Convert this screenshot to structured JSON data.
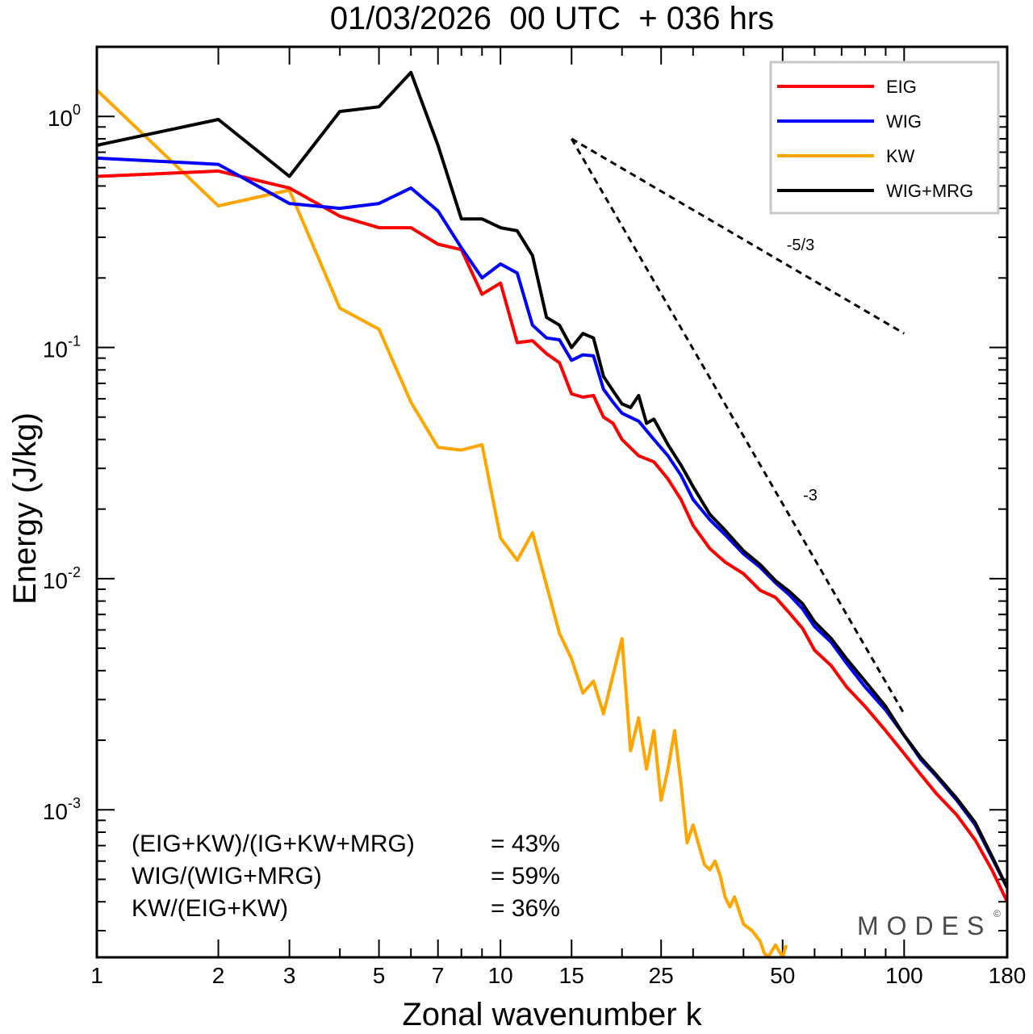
{
  "chart_data": {
    "type": "line",
    "title": "01/03/2026  00 UTC  + 036 hrs",
    "xlabel": "Zonal wavenumber k",
    "ylabel": "Energy (J/kg)",
    "xscale": "log",
    "yscale": "log",
    "xlim": [
      1,
      180
    ],
    "ylim": [
      0.00023,
      2.0
    ],
    "x_ticks": [
      1,
      2,
      3,
      5,
      7,
      10,
      15,
      25,
      50,
      100,
      180
    ],
    "x_tick_labels": [
      "1",
      "2",
      "3",
      "5",
      "7",
      "10",
      "15",
      "25",
      "50",
      "100",
      "180"
    ],
    "y_ticks": [
      {
        "value": 1,
        "base": "10",
        "exp": "0"
      },
      {
        "value": 0.1,
        "base": "10",
        "exp": "-1"
      },
      {
        "value": 0.01,
        "base": "10",
        "exp": "-2"
      },
      {
        "value": 0.001,
        "base": "10",
        "exp": "-3"
      }
    ],
    "legend_position": "top-right",
    "series": [
      {
        "name": "EIG",
        "color": "#ff0000",
        "points": [
          [
            1,
            0.55
          ],
          [
            2,
            0.58
          ],
          [
            3,
            0.49
          ],
          [
            4,
            0.37
          ],
          [
            5,
            0.33
          ],
          [
            6,
            0.33
          ],
          [
            7,
            0.28
          ],
          [
            8,
            0.265
          ],
          [
            9,
            0.17
          ],
          [
            10,
            0.19
          ],
          [
            11,
            0.105
          ],
          [
            12,
            0.107
          ],
          [
            13,
            0.094
          ],
          [
            14,
            0.086
          ],
          [
            15,
            0.063
          ],
          [
            16,
            0.061
          ],
          [
            17,
            0.062
          ],
          [
            18,
            0.05
          ],
          [
            19,
            0.047
          ],
          [
            20,
            0.04
          ],
          [
            22,
            0.034
          ],
          [
            24,
            0.032
          ],
          [
            26,
            0.027
          ],
          [
            28,
            0.022
          ],
          [
            30,
            0.017
          ],
          [
            33,
            0.0135
          ],
          [
            36,
            0.0118
          ],
          [
            40,
            0.0105
          ],
          [
            44,
            0.0089
          ],
          [
            48,
            0.0083
          ],
          [
            52,
            0.0071
          ],
          [
            56,
            0.0061
          ],
          [
            60,
            0.0049
          ],
          [
            66,
            0.0042
          ],
          [
            72,
            0.0034
          ],
          [
            80,
            0.0028
          ],
          [
            90,
            0.0022
          ],
          [
            100,
            0.00175
          ],
          [
            110,
            0.00142
          ],
          [
            120,
            0.00118
          ],
          [
            135,
            0.00095
          ],
          [
            150,
            0.00074
          ],
          [
            165,
            0.00055
          ],
          [
            180,
            0.0004
          ]
        ]
      },
      {
        "name": "WIG",
        "color": "#0000ff",
        "points": [
          [
            1,
            0.66
          ],
          [
            2,
            0.62
          ],
          [
            3,
            0.42
          ],
          [
            4,
            0.4
          ],
          [
            5,
            0.42
          ],
          [
            6,
            0.49
          ],
          [
            7,
            0.39
          ],
          [
            8,
            0.27
          ],
          [
            9,
            0.2
          ],
          [
            10,
            0.23
          ],
          [
            11,
            0.21
          ],
          [
            12,
            0.125
          ],
          [
            13,
            0.11
          ],
          [
            14,
            0.108
          ],
          [
            15,
            0.088
          ],
          [
            16,
            0.093
          ],
          [
            17,
            0.092
          ],
          [
            18,
            0.066
          ],
          [
            19,
            0.058
          ],
          [
            20,
            0.052
          ],
          [
            22,
            0.048
          ],
          [
            24,
            0.04
          ],
          [
            26,
            0.034
          ],
          [
            28,
            0.028
          ],
          [
            30,
            0.022
          ],
          [
            33,
            0.018
          ],
          [
            36,
            0.0155
          ],
          [
            40,
            0.0128
          ],
          [
            44,
            0.0112
          ],
          [
            48,
            0.0096
          ],
          [
            52,
            0.0085
          ],
          [
            56,
            0.0074
          ],
          [
            60,
            0.0062
          ],
          [
            66,
            0.0053
          ],
          [
            72,
            0.0043
          ],
          [
            80,
            0.0034
          ],
          [
            90,
            0.0027
          ],
          [
            100,
            0.0021
          ],
          [
            110,
            0.00165
          ],
          [
            120,
            0.0014
          ],
          [
            135,
            0.0011
          ],
          [
            150,
            0.00086
          ],
          [
            165,
            0.00062
          ],
          [
            180,
            0.00046
          ]
        ]
      },
      {
        "name": "KW",
        "color": "#ffa500",
        "points": [
          [
            1,
            1.3
          ],
          [
            2,
            0.41
          ],
          [
            3,
            0.48
          ],
          [
            4,
            0.148
          ],
          [
            5,
            0.12
          ],
          [
            6,
            0.058
          ],
          [
            7,
            0.037
          ],
          [
            8,
            0.036
          ],
          [
            9,
            0.038
          ],
          [
            10,
            0.015
          ],
          [
            11,
            0.012
          ],
          [
            12,
            0.0158
          ],
          [
            14,
            0.0058
          ],
          [
            15,
            0.0045
          ],
          [
            16,
            0.0032
          ],
          [
            17,
            0.0036
          ],
          [
            18,
            0.0026
          ],
          [
            20,
            0.0055
          ],
          [
            21,
            0.0018
          ],
          [
            22,
            0.0025
          ],
          [
            23,
            0.0015
          ],
          [
            24,
            0.0022
          ],
          [
            25,
            0.0011
          ],
          [
            26,
            0.0015
          ],
          [
            27,
            0.0022
          ],
          [
            28,
            0.0013
          ],
          [
            29,
            0.00072
          ],
          [
            30,
            0.00086
          ],
          [
            32,
            0.00058
          ],
          [
            33,
            0.00055
          ],
          [
            34,
            0.0006
          ],
          [
            35,
            0.00052
          ],
          [
            36,
            0.00042
          ],
          [
            37,
            0.00038
          ],
          [
            38,
            0.00042
          ],
          [
            40,
            0.00032
          ],
          [
            42,
            0.0003
          ],
          [
            44,
            0.00027
          ],
          [
            45,
            0.00024
          ],
          [
            46,
            0.00023
          ],
          [
            48,
            0.00026
          ],
          [
            50,
            0.00023
          ],
          [
            51,
            0.00026
          ]
        ]
      },
      {
        "name": "WIG+MRG",
        "color": "#000000",
        "points": [
          [
            1,
            0.75
          ],
          [
            2,
            0.97
          ],
          [
            3,
            0.55
          ],
          [
            4,
            1.05
          ],
          [
            5,
            1.1
          ],
          [
            6,
            1.55
          ],
          [
            7,
            0.75
          ],
          [
            8,
            0.36
          ],
          [
            9,
            0.36
          ],
          [
            10,
            0.33
          ],
          [
            11,
            0.32
          ],
          [
            12,
            0.25
          ],
          [
            13,
            0.135
          ],
          [
            14,
            0.125
          ],
          [
            15,
            0.1
          ],
          [
            16,
            0.115
          ],
          [
            17,
            0.11
          ],
          [
            18,
            0.075
          ],
          [
            19,
            0.065
          ],
          [
            20,
            0.057
          ],
          [
            21,
            0.055
          ],
          [
            22,
            0.062
          ],
          [
            23,
            0.047
          ],
          [
            24,
            0.049
          ],
          [
            26,
            0.038
          ],
          [
            28,
            0.031
          ],
          [
            30,
            0.025
          ],
          [
            33,
            0.019
          ],
          [
            36,
            0.0162
          ],
          [
            40,
            0.0132
          ],
          [
            44,
            0.0115
          ],
          [
            48,
            0.0098
          ],
          [
            52,
            0.0088
          ],
          [
            56,
            0.0078
          ],
          [
            60,
            0.0065
          ],
          [
            66,
            0.0055
          ],
          [
            72,
            0.0045
          ],
          [
            80,
            0.0036
          ],
          [
            90,
            0.0028
          ],
          [
            100,
            0.0021
          ],
          [
            110,
            0.00168
          ],
          [
            120,
            0.00142
          ],
          [
            135,
            0.00112
          ],
          [
            150,
            0.00088
          ],
          [
            165,
            0.00063
          ],
          [
            180,
            0.00046
          ]
        ]
      }
    ],
    "reference_slopes": [
      {
        "label": "-5/3",
        "from": [
          15,
          0.8
        ],
        "to": [
          100,
          0.115
        ]
      },
      {
        "label": "-3",
        "from": [
          15,
          0.8
        ],
        "to": [
          100,
          0.0026
        ]
      }
    ],
    "annotations": [
      {
        "label": "(EIG+KW)/(IG+KW+MRG)",
        "value": "= 43%"
      },
      {
        "label": "WIG/(WIG+MRG)",
        "value": "= 59%"
      },
      {
        "label": "KW/(EIG+KW)",
        "value": "= 36%"
      }
    ],
    "watermark": "MODES",
    "watermark_mark": "©"
  }
}
